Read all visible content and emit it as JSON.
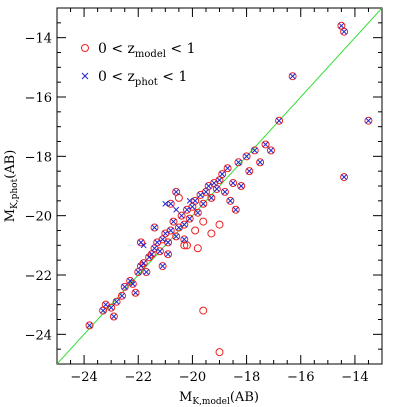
{
  "chart_data": {
    "type": "scatter",
    "title": "",
    "xlabel": {
      "main": "M",
      "sub": "K,model",
      "tail": "(AB)"
    },
    "ylabel": {
      "main": "M",
      "sub": "K,phot",
      "tail": "(AB)"
    },
    "xlim": [
      -25,
      -13
    ],
    "ylim": [
      -25,
      -13
    ],
    "x_ticks": [
      -24,
      -22,
      -20,
      -18,
      -16,
      -14
    ],
    "y_ticks": [
      -24,
      -22,
      -20,
      -18,
      -16,
      -14
    ],
    "x_tick_labels": [
      "−24",
      "−22",
      "−20",
      "−18",
      "−16",
      "−14"
    ],
    "y_tick_labels": [
      "−24",
      "−22",
      "−20",
      "−18",
      "−16",
      "−14"
    ],
    "minor_tick_step": 0.5,
    "grid": false,
    "legend_position": "top-left",
    "reference_line": {
      "type": "one-to-one",
      "color": "#33dd33"
    },
    "series": [
      {
        "name_parts": {
          "pre": "0 < z",
          "sub": "model",
          "post": " < 1"
        },
        "marker": "open-circle",
        "color": "#ee2222",
        "points": [
          [
            -23.8,
            -23.7
          ],
          [
            -23.3,
            -23.2
          ],
          [
            -23.2,
            -23.0
          ],
          [
            -23.0,
            -23.1
          ],
          [
            -22.8,
            -22.9
          ],
          [
            -22.6,
            -22.7
          ],
          [
            -22.5,
            -22.4
          ],
          [
            -22.3,
            -22.2
          ],
          [
            -22.2,
            -22.3
          ],
          [
            -22.0,
            -21.9
          ],
          [
            -21.9,
            -21.7
          ],
          [
            -21.8,
            -21.6
          ],
          [
            -21.7,
            -21.9
          ],
          [
            -21.6,
            -21.4
          ],
          [
            -21.5,
            -21.3
          ],
          [
            -21.4,
            -21.1
          ],
          [
            -21.3,
            -20.9
          ],
          [
            -21.2,
            -21.2
          ],
          [
            -21.1,
            -20.8
          ],
          [
            -21.0,
            -20.6
          ],
          [
            -20.9,
            -20.9
          ],
          [
            -20.8,
            -20.5
          ],
          [
            -20.7,
            -20.2
          ],
          [
            -20.6,
            -20.7
          ],
          [
            -20.5,
            -20.4
          ],
          [
            -20.4,
            -20.0
          ],
          [
            -20.3,
            -20.3
          ],
          [
            -20.2,
            -19.8
          ],
          [
            -20.1,
            -20.1
          ],
          [
            -20.0,
            -19.7
          ],
          [
            -19.9,
            -19.5
          ],
          [
            -19.8,
            -19.9
          ],
          [
            -19.7,
            -19.3
          ],
          [
            -19.6,
            -19.6
          ],
          [
            -19.5,
            -19.2
          ],
          [
            -19.4,
            -19.0
          ],
          [
            -19.3,
            -19.4
          ],
          [
            -19.2,
            -18.9
          ],
          [
            -19.1,
            -19.1
          ],
          [
            -19.0,
            -18.8
          ],
          [
            -18.9,
            -18.6
          ],
          [
            -18.8,
            -19.2
          ],
          [
            -18.7,
            -18.4
          ],
          [
            -18.6,
            -19.5
          ],
          [
            -18.5,
            -18.9
          ],
          [
            -18.4,
            -19.8
          ],
          [
            -18.3,
            -18.2
          ],
          [
            -18.2,
            -19.0
          ],
          [
            -18.0,
            -18.0
          ],
          [
            -17.9,
            -18.5
          ],
          [
            -17.7,
            -17.8
          ],
          [
            -17.5,
            -18.2
          ],
          [
            -17.3,
            -17.6
          ],
          [
            -17.1,
            -17.8
          ],
          [
            -16.8,
            -16.8
          ],
          [
            -16.3,
            -15.3
          ],
          [
            -14.5,
            -13.6
          ],
          [
            -14.4,
            -13.8
          ],
          [
            -13.5,
            -16.8
          ],
          [
            -14.4,
            -18.7
          ],
          [
            -20.8,
            -19.6
          ],
          [
            -21.9,
            -20.9
          ],
          [
            -21.4,
            -20.4
          ],
          [
            -20.6,
            -19.2
          ],
          [
            -20.9,
            -21.3
          ],
          [
            -19.6,
            -20.2
          ],
          [
            -19.3,
            -20.6
          ],
          [
            -19.0,
            -20.3
          ],
          [
            -20.3,
            -21.0
          ],
          [
            -21.1,
            -21.7
          ],
          [
            -22.1,
            -22.6
          ],
          [
            -22.9,
            -23.4
          ],
          [
            -20.3,
            -20.8
          ],
          [
            -19.9,
            -20.5
          ],
          [
            -20.5,
            -19.4
          ]
        ]
      },
      {
        "name_parts": {
          "pre": "0 < z",
          "sub": "phot",
          "post": " < 1"
        },
        "marker": "x",
        "color": "#2222cc",
        "points": [
          [
            -23.8,
            -23.7
          ],
          [
            -23.3,
            -23.2
          ],
          [
            -23.2,
            -23.0
          ],
          [
            -23.0,
            -23.1
          ],
          [
            -22.8,
            -22.9
          ],
          [
            -22.6,
            -22.7
          ],
          [
            -22.5,
            -22.4
          ],
          [
            -22.3,
            -22.2
          ],
          [
            -22.2,
            -22.3
          ],
          [
            -22.0,
            -21.9
          ],
          [
            -21.9,
            -21.7
          ],
          [
            -21.8,
            -21.6
          ],
          [
            -21.7,
            -21.9
          ],
          [
            -21.6,
            -21.4
          ],
          [
            -21.5,
            -21.3
          ],
          [
            -21.4,
            -21.1
          ],
          [
            -21.3,
            -20.9
          ],
          [
            -21.2,
            -21.2
          ],
          [
            -21.1,
            -20.8
          ],
          [
            -21.0,
            -20.6
          ],
          [
            -20.9,
            -20.9
          ],
          [
            -20.8,
            -20.5
          ],
          [
            -20.7,
            -20.2
          ],
          [
            -20.6,
            -20.7
          ],
          [
            -20.5,
            -20.4
          ],
          [
            -20.4,
            -20.0
          ],
          [
            -20.3,
            -20.3
          ],
          [
            -20.2,
            -19.8
          ],
          [
            -20.1,
            -20.1
          ],
          [
            -20.0,
            -19.7
          ],
          [
            -19.9,
            -19.5
          ],
          [
            -19.8,
            -19.9
          ],
          [
            -19.7,
            -19.3
          ],
          [
            -19.6,
            -19.6
          ],
          [
            -19.5,
            -19.2
          ],
          [
            -19.4,
            -19.0
          ],
          [
            -19.3,
            -19.4
          ],
          [
            -19.2,
            -18.9
          ],
          [
            -19.1,
            -19.1
          ],
          [
            -19.0,
            -18.8
          ],
          [
            -18.9,
            -18.6
          ],
          [
            -18.8,
            -19.2
          ],
          [
            -18.7,
            -18.4
          ],
          [
            -18.6,
            -19.5
          ],
          [
            -18.5,
            -18.9
          ],
          [
            -18.4,
            -19.8
          ],
          [
            -18.3,
            -18.2
          ],
          [
            -18.2,
            -19.0
          ],
          [
            -18.0,
            -18.0
          ],
          [
            -17.9,
            -18.5
          ],
          [
            -17.7,
            -17.8
          ],
          [
            -17.5,
            -18.2
          ],
          [
            -17.3,
            -17.6
          ],
          [
            -17.1,
            -17.8
          ],
          [
            -16.8,
            -16.8
          ],
          [
            -16.3,
            -15.3
          ],
          [
            -14.5,
            -13.6
          ],
          [
            -14.4,
            -13.8
          ],
          [
            -13.5,
            -16.8
          ],
          [
            -14.4,
            -18.7
          ],
          [
            -20.8,
            -19.6
          ],
          [
            -21.9,
            -20.9
          ],
          [
            -21.4,
            -20.4
          ],
          [
            -20.6,
            -19.2
          ],
          [
            -20.9,
            -21.3
          ],
          [
            -21.1,
            -21.7
          ],
          [
            -22.1,
            -22.6
          ],
          [
            -22.9,
            -23.4
          ],
          [
            -20.3,
            -20.8
          ],
          [
            -21.0,
            -19.6
          ],
          [
            -21.8,
            -21.0
          ],
          [
            -20.6,
            -19.8
          ],
          [
            -20.1,
            -19.5
          ]
        ]
      }
    ],
    "outliers_model_only": [
      [
        -19.6,
        -23.2
      ],
      [
        -19.0,
        -24.6
      ],
      [
        -19.8,
        -21.1
      ],
      [
        -20.2,
        -21.0
      ]
    ]
  }
}
